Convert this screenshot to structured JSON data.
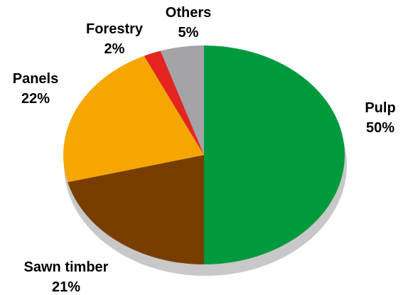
{
  "chart_data": {
    "type": "pie",
    "title": "",
    "start_angle_deg": 0,
    "direction": "clockwise",
    "slices": [
      {
        "label": "Pulp",
        "value_label": "50%",
        "value": 50,
        "color": "#009a3e"
      },
      {
        "label": "Sawn timber",
        "value_label": "21%",
        "value": 21,
        "color": "#7a3d00"
      },
      {
        "label": "Panels",
        "value_label": "22%",
        "value": 22,
        "color": "#f5a700"
      },
      {
        "label": "Forestry",
        "value_label": "2%",
        "value": 2,
        "color": "#e52421"
      },
      {
        "label": "Others",
        "value_label": "5%",
        "value": 5,
        "color": "#a3a3a8"
      }
    ],
    "shadow_color": "#c8c8c8",
    "legend": "none"
  }
}
